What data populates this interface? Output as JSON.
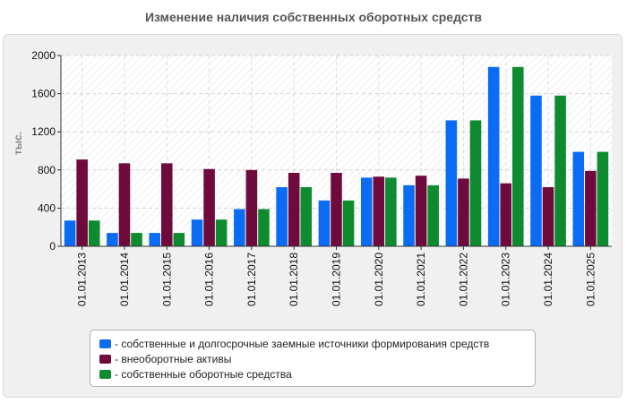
{
  "chart_data": {
    "type": "bar",
    "title": "Изменение наличия собственных оборотных средств",
    "ylabel": "тыс.",
    "xlabel": "",
    "ylim": [
      0,
      2000
    ],
    "yticks": [
      0,
      400,
      800,
      1200,
      1600,
      2000
    ],
    "grid": true,
    "legend_position": "bottom",
    "categories": [
      "01.01.2013",
      "01.01.2014",
      "01.01.2015",
      "01.01.2016",
      "01.01.2017",
      "01.01.2018",
      "01.01.2019",
      "01.01.2020",
      "01.01.2021",
      "01.01.2022",
      "01.01.2023",
      "01.01.2024",
      "01.01.2025"
    ],
    "series": [
      {
        "name": "собственные и долгосрочные заемные источники формирования средств",
        "color": "#0a6cf5",
        "values": [
          270,
          140,
          140,
          280,
          390,
          620,
          480,
          720,
          640,
          1320,
          1880,
          1580,
          990
        ]
      },
      {
        "name": "внеоборотные активы",
        "color": "#6e0a3c",
        "values": [
          910,
          870,
          870,
          810,
          800,
          770,
          770,
          730,
          740,
          710,
          660,
          620,
          790
        ]
      },
      {
        "name": "собственные оборотные средства",
        "color": "#0e8a2f",
        "values": [
          270,
          140,
          140,
          280,
          390,
          620,
          480,
          720,
          640,
          1320,
          1880,
          1580,
          990
        ]
      }
    ]
  }
}
